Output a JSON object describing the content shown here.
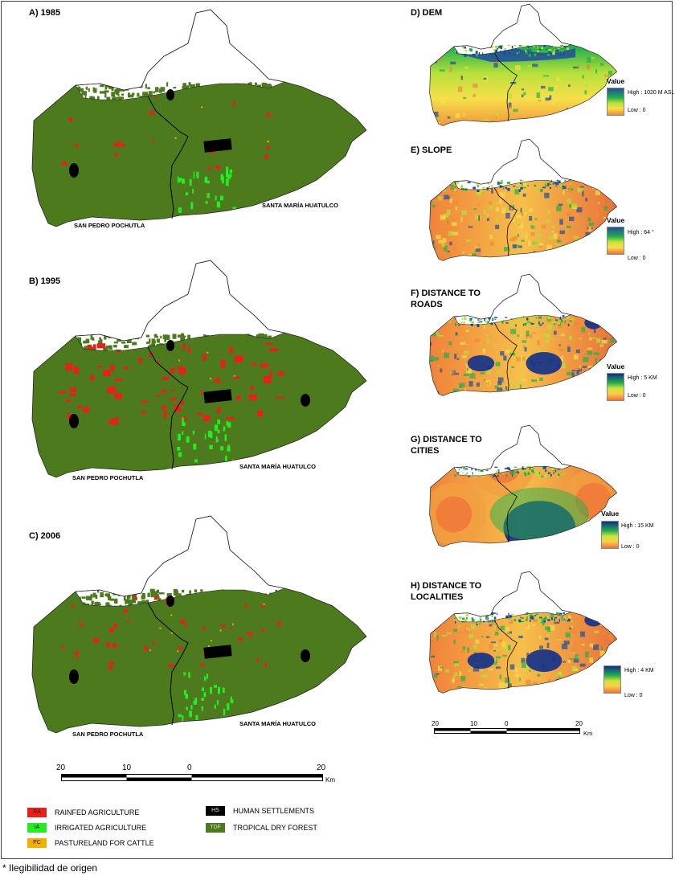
{
  "panels_left": [
    {
      "title": "A) 1985",
      "municipalities": [
        "SAN PEDRO POCHUTLA",
        "SANTA MARÍA HUATULCO"
      ]
    },
    {
      "title": "B) 1995",
      "municipalities": [
        "SAN PEDRO POCHUTLA",
        "SANTA MARÍA HUATULCO"
      ]
    },
    {
      "title": "C) 2006",
      "municipalities": [
        "SAN PEDRO POCHUTLA",
        "SANTA MARÍA HUATULCO"
      ]
    }
  ],
  "panels_right": [
    {
      "title": "D) DEM",
      "legend_title": "Value",
      "high": "High : 1020 M ASL",
      "low": "Low : 0",
      "colormap": "dem"
    },
    {
      "title": "E) SLOPE",
      "legend_title": "Value",
      "high": "High : 64 °",
      "low": "Low : 0",
      "colormap": "slope"
    },
    {
      "title": "F) DISTANCE TO ROADS",
      "legend_title": "Value",
      "high": "High : 5 KM",
      "low": "Low : 0",
      "colormap": "dist"
    },
    {
      "title": "G) DISTANCE TO CITIES",
      "legend_title": "Value",
      "high": "High : 15 KM",
      "low": "Low : 0",
      "colormap": "dist"
    },
    {
      "title": "H) DISTANCE TO LOCALITIES",
      "legend_title": "Value",
      "high": "High : 4 KM",
      "low": "Low : 0",
      "colormap": "dist"
    }
  ],
  "scalebar_left": {
    "labels": [
      "20",
      "10",
      "0",
      "20"
    ],
    "unit": "Km"
  },
  "scalebar_right": {
    "labels": [
      "20",
      "10",
      "0",
      "20"
    ],
    "unit": "Km"
  },
  "landcover_legend": [
    {
      "code": "RA",
      "label": "RAINFED AGRICULTURE",
      "color": "#e8201c"
    },
    {
      "code": "IA",
      "label": "IRRIGATED AGRICULTURE",
      "color": "#22ee22"
    },
    {
      "code": "PC",
      "label": "PASTURELAND FOR CATTLE",
      "color": "#f0b000"
    },
    {
      "code": "HS",
      "label": "HUMAN SETTLEMENTS",
      "color": "#000000"
    },
    {
      "code": "TDF",
      "label": "TROPICAL DRY FOREST",
      "color": "#4e7a1e"
    }
  ],
  "colors": {
    "forest": "#4e7a1e",
    "rainfed": "#e8201c",
    "irrigated": "#22ee22",
    "pasture": "#f0b000",
    "settlement": "#000000"
  },
  "footnote": "* Ilegibilidad de origen"
}
